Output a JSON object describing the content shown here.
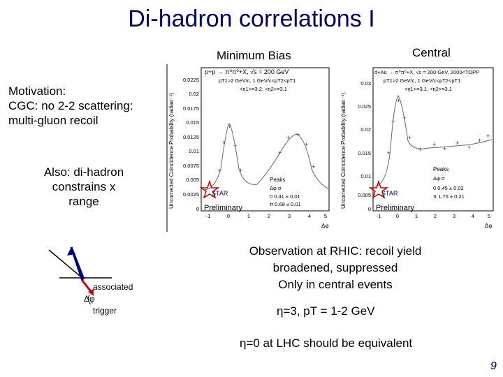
{
  "slide": {
    "title": "Di-hadron correlations I",
    "page_number": "9"
  },
  "left_text": {
    "motivation_lines": [
      "Motivation:",
      "CGC: no 2-2 scattering:",
      "multi-gluon recoil"
    ],
    "also_lines": [
      "Also: di-hadron",
      "constrains x",
      "range"
    ]
  },
  "diagram": {
    "associated_label": "associated",
    "dphi_label": "Δφ",
    "trigger_label": "trigger"
  },
  "right_text": {
    "observation_lines": [
      "Observation at RHIC: recoil yield",
      "broadened, suppressed",
      "Only in central events"
    ],
    "eta3_line": "η=3, pT = 1-2 GeV",
    "eta0_line": "η=0 at LHC should be equivalent"
  },
  "panels": [
    {
      "caption": "Minimum Bias",
      "reaction": "p+p → π⁰π⁰+X, √s = 200 GeV",
      "cut1": "pT1>2 GeV/c, 1 GeV/c<pT2<pT1",
      "cut2": "<η1>=3.2, <η2>=3.1",
      "ylabel": "Uncorrected Coincidence Probability (radian⁻¹)",
      "yticks": [
        "0.0225",
        "0.02",
        "0.0175",
        "0.015",
        "0.0125",
        "0.01",
        "0.0075",
        "0.005",
        "0.0025",
        "0"
      ],
      "xticks": [
        "-1",
        "0",
        "1",
        "2",
        "3",
        "4",
        "5"
      ],
      "xlabel": "Δφ",
      "peaks_title": "Peaks",
      "peaks_header": "Δφ   σ",
      "peak_row1": "0     0.41 ± 0.01",
      "peak_row2": "π     0.68 ± 0.01",
      "star": "STAR",
      "prelim": "Preliminary"
    },
    {
      "caption": "Central",
      "reaction": "d+Au → π⁰π⁰+X, √s = 200 GeV, 2000<TOPP",
      "cut1": "pT1>2 GeV/c, 1 GeV/c<pT2<pT1",
      "cut2": "<η1>=3.1, <η2>=3.1",
      "ylabel": "Uncorrected Coincidence Probability (radian⁻¹)",
      "yticks": [
        "0.03",
        "0.025",
        "0.02",
        "0.015",
        "0.01",
        "0.005",
        "0"
      ],
      "xticks": [
        "-1",
        "0",
        "1",
        "2",
        "3",
        "4",
        "5"
      ],
      "xlabel": "Δφ",
      "peaks_title": "Peaks",
      "peaks_header": "Δφ   σ",
      "peak_row1": "0     0.45 ± 0.02",
      "peak_row2": "π     1.75 ± 0.21",
      "star": "STAR",
      "prelim": "Preliminary"
    }
  ]
}
